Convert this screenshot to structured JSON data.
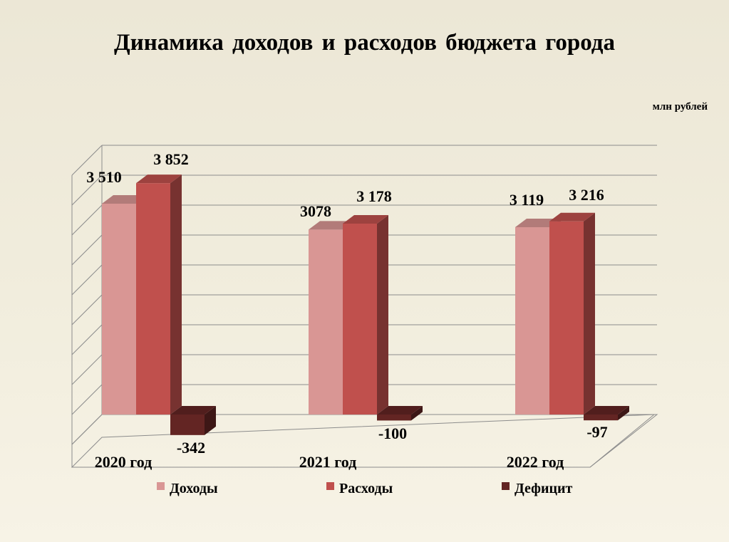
{
  "title": "Динамика  доходов  и расходов  бюджета  города",
  "unit_label": "млн рублей",
  "chart_data": {
    "type": "bar",
    "title": "Динамика  доходов  и расходов  бюджета  города",
    "categories": [
      "2020 год",
      "2021 год",
      "2022 год"
    ],
    "series": [
      {
        "name": "Доходы",
        "values": [
          3510,
          3078,
          3119
        ],
        "labels": [
          "3 510",
          "3078",
          "3 119"
        ],
        "color": "#d99694"
      },
      {
        "name": "Расходы",
        "values": [
          3852,
          3178,
          3216
        ],
        "labels": [
          "3 852",
          "3 178",
          "3 216"
        ],
        "color": "#c0504d"
      },
      {
        "name": "Дефицит",
        "values": [
          -342,
          -100,
          -97
        ],
        "labels": [
          "-342",
          "-100",
          "-97"
        ],
        "color": "#632523"
      }
    ],
    "ylim": [
      -500,
      4000
    ],
    "grid": true,
    "legend": "bottom"
  }
}
